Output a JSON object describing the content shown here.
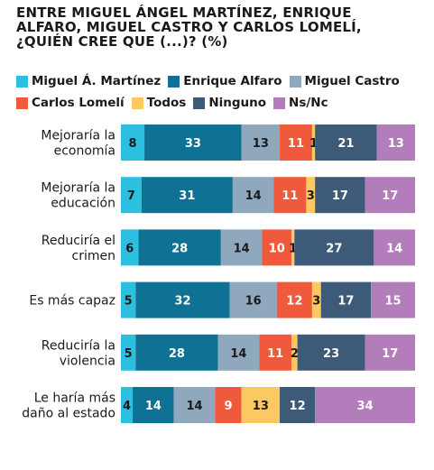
{
  "chart_data": {
    "type": "bar",
    "orientation": "horizontal",
    "stacked": true,
    "title": "ENTRE MIGUEL ÁNGEL MARTÍNEZ, ENRIQUE ALFARO, MIGUEL CASTRO Y CARLOS LOMELÍ, ¿QUIÉN CREE QUE (...)? (%)",
    "categories": [
      [
        "Mejoraría la",
        "economía"
      ],
      [
        "Mejoraría la",
        "educación"
      ],
      [
        "Reduciría el",
        "crimen"
      ],
      [
        "Es más capaz"
      ],
      [
        "Reduciría la",
        "violencia"
      ],
      [
        "Le haría más",
        "daño al estado"
      ]
    ],
    "series": [
      {
        "name": "Miguel Á. Martínez",
        "color": "#2dbfe0",
        "label_color": "#1a1a1a",
        "values": [
          8,
          7,
          6,
          5,
          5,
          4
        ]
      },
      {
        "name": "Enrique Alfaro",
        "color": "#0f7193",
        "label_color": "#ffffff",
        "values": [
          33,
          31,
          28,
          32,
          28,
          14
        ]
      },
      {
        "name": "Miguel Castro",
        "color": "#8fa8bd",
        "label_color": "#1a1a1a",
        "values": [
          13,
          14,
          14,
          16,
          14,
          14
        ]
      },
      {
        "name": "Carlos Lomelí",
        "color": "#ef5a3c",
        "label_color": "#ffffff",
        "values": [
          11,
          11,
          10,
          12,
          11,
          9
        ]
      },
      {
        "name": "Todos",
        "color": "#fcc862",
        "label_color": "#1a1a1a",
        "values": [
          1,
          3,
          1,
          3,
          2,
          13
        ]
      },
      {
        "name": "Ninguno",
        "color": "#3d5a78",
        "label_color": "#ffffff",
        "values": [
          21,
          17,
          27,
          17,
          23,
          12
        ]
      },
      {
        "name": "Ns/Nc",
        "color": "#b27dba",
        "label_color": "#ffffff",
        "values": [
          13,
          17,
          14,
          15,
          17,
          34
        ]
      }
    ],
    "legend_rows": [
      [
        0,
        1,
        2
      ],
      [
        3,
        4,
        5,
        6
      ]
    ],
    "legend_position": "top",
    "xlim": [
      0,
      100
    ],
    "grid": false
  }
}
